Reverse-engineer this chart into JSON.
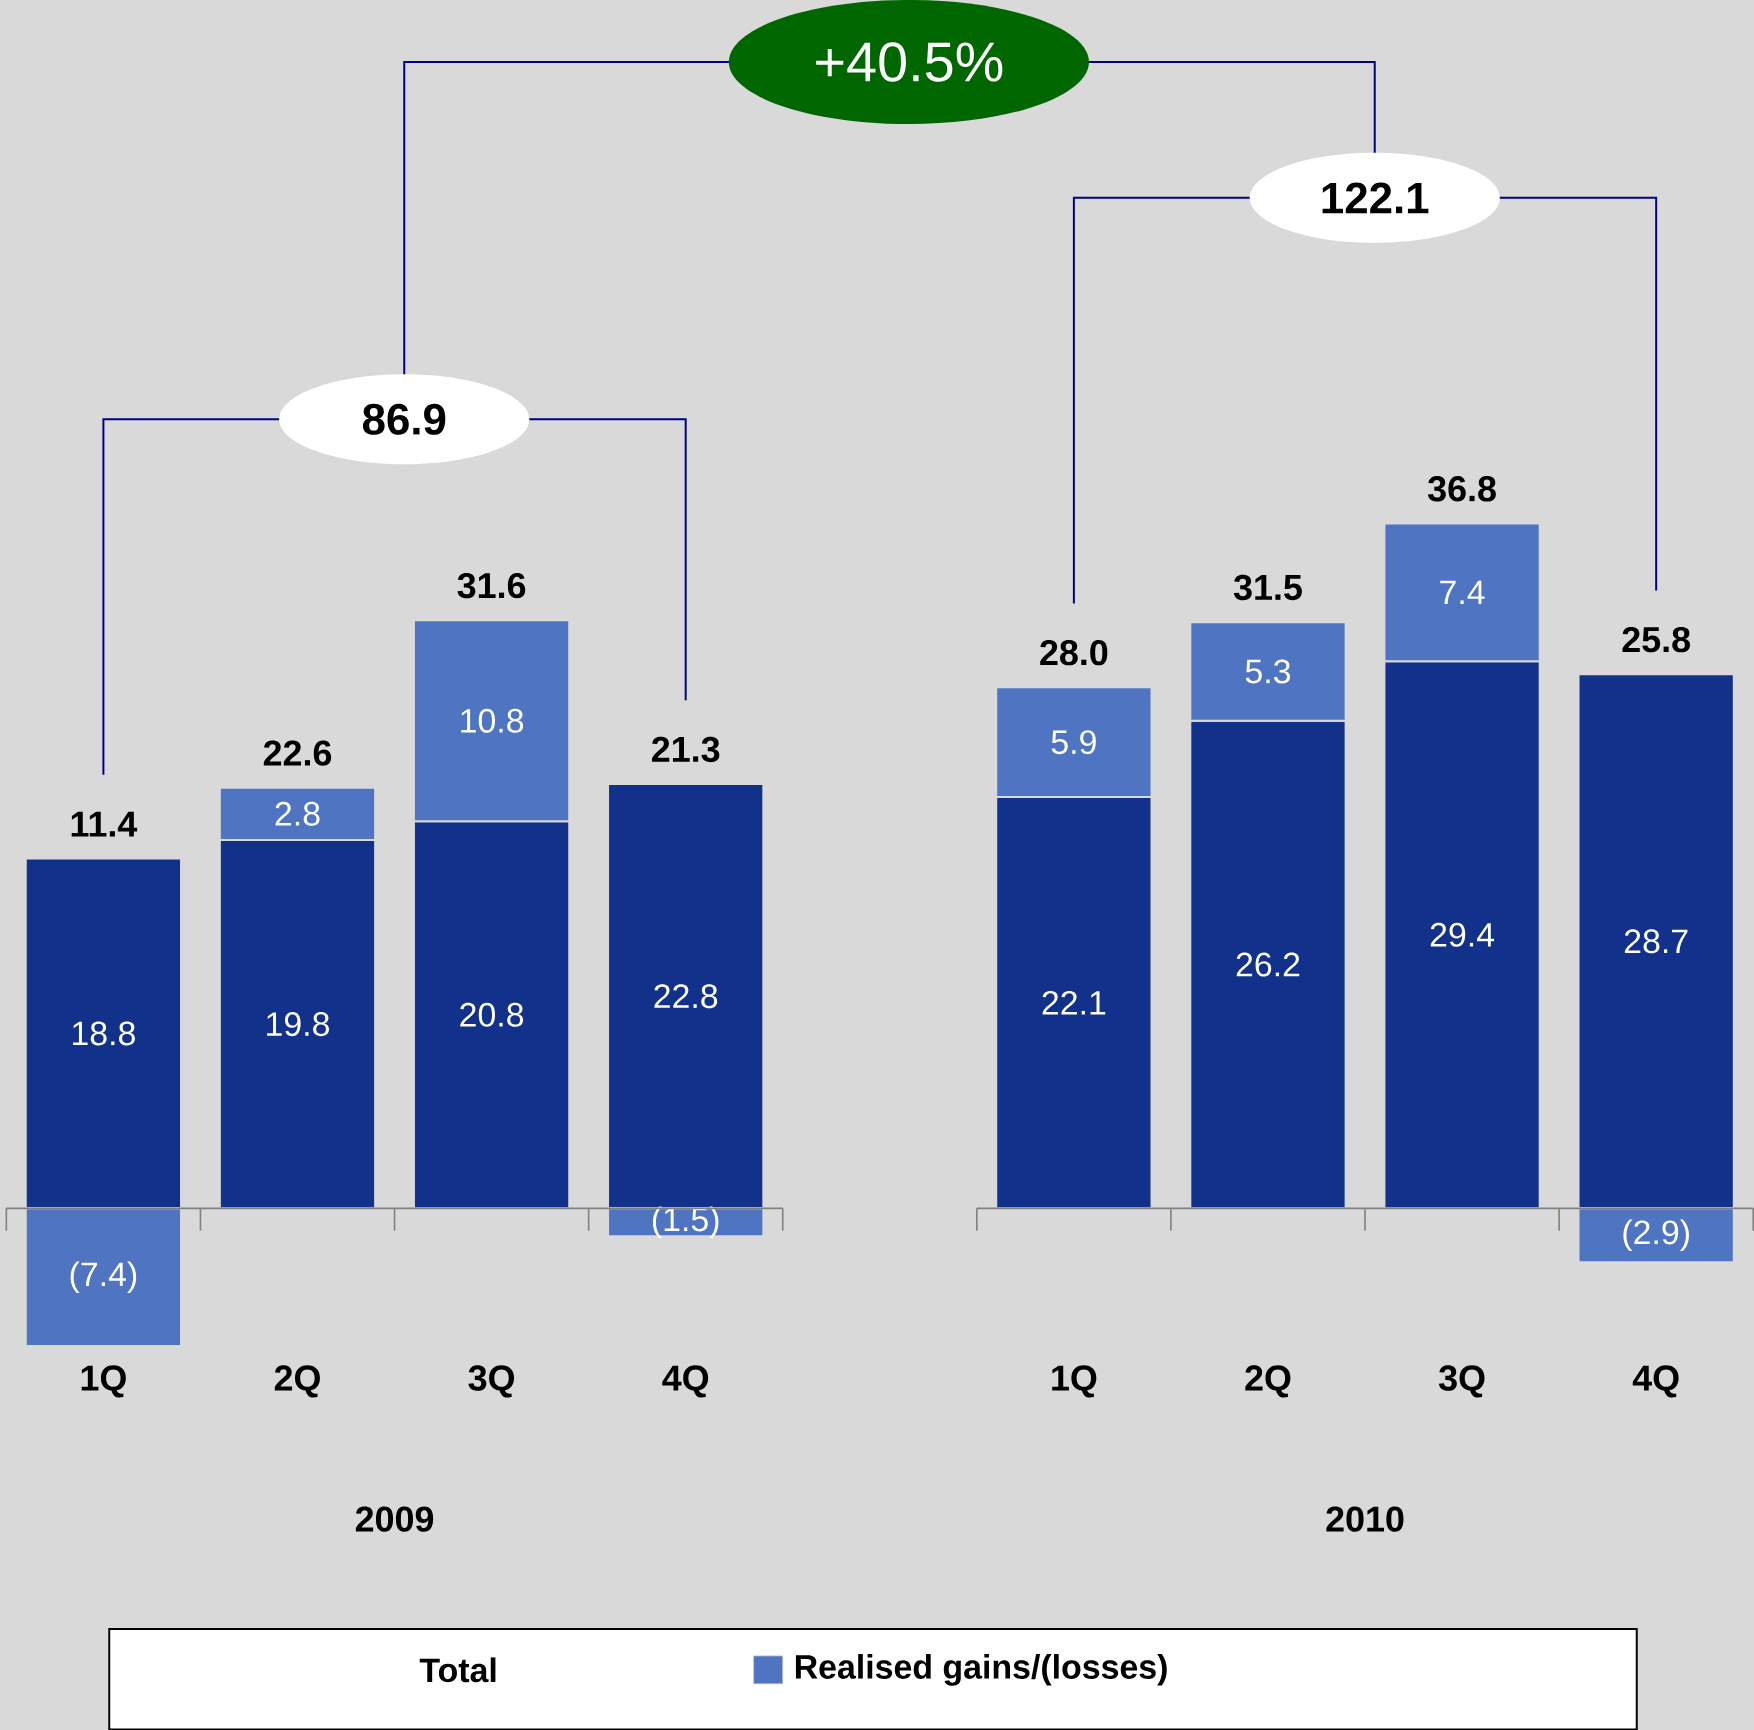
{
  "chart_data": {
    "type": "bar",
    "stacked": true,
    "categories": [
      "1Q",
      "2Q",
      "3Q",
      "4Q",
      null,
      "1Q",
      "2Q",
      "3Q",
      "4Q"
    ],
    "series": [
      {
        "color": "#12318a",
        "values": [
          18.8,
          19.8,
          20.8,
          22.8,
          null,
          22.1,
          26.2,
          29.4,
          28.7
        ],
        "value_labels": [
          "18.8",
          "19.8",
          "20.8",
          "22.8",
          null,
          "22.1",
          "26.2",
          "29.4",
          "28.7"
        ]
      },
      {
        "name": "Realised gains/(losses)",
        "color": "#4e74c2",
        "values": [
          -7.4,
          2.8,
          10.8,
          -1.5,
          null,
          5.9,
          5.3,
          7.4,
          -2.9
        ],
        "value_labels": [
          "(7.4)",
          "2.8",
          "10.8",
          "(1.5)",
          null,
          "5.9",
          "5.3",
          "7.4",
          "(2.9)"
        ]
      }
    ],
    "totals": [
      "11.4",
      "22.6",
      "31.6",
      "21.3",
      null,
      "28.0",
      "31.5",
      "36.8",
      "25.8"
    ],
    "ref_lines": [
      {
        "axis": "y",
        "value": 0,
        "color": "#808080"
      }
    ],
    "legend": "bottom",
    "legend_title": "Total",
    "annotations": [
      "86.9",
      "122.1",
      "+40.5%",
      "2009",
      "2010"
    ]
  }
}
